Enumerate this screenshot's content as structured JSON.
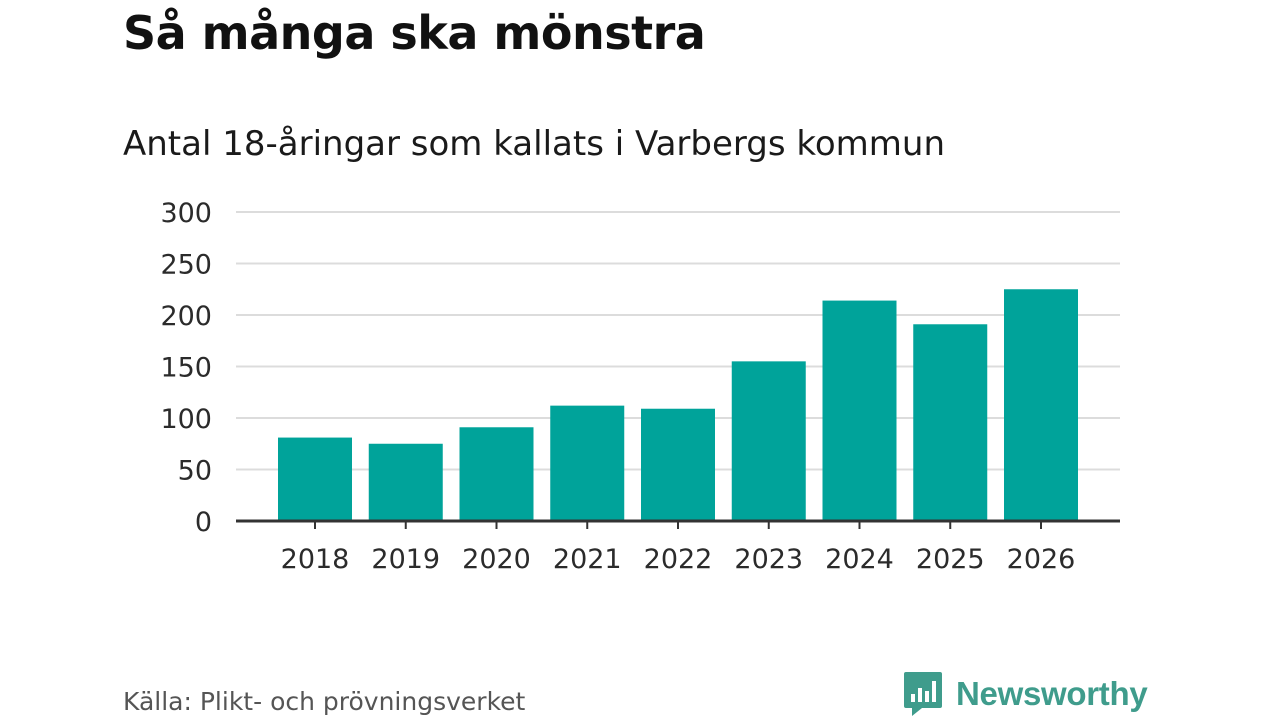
{
  "title": "Så många ska mönstra",
  "source": "Källa: Plikt- och prövningsverket",
  "brand": {
    "name": "Newsworthy",
    "icon": "newsworthy-logo-icon",
    "color": "#3f9c8c"
  },
  "chart_data": {
    "type": "bar",
    "title": "Så många ska mönstra",
    "subtitle": "Antal 18-åringar som kallats i Varbergs kommun",
    "categories": [
      "2018",
      "2019",
      "2020",
      "2021",
      "2022",
      "2023",
      "2024",
      "2025",
      "2026"
    ],
    "values": [
      81,
      75,
      91,
      112,
      109,
      155,
      214,
      191,
      225
    ],
    "ylim": [
      0,
      300
    ],
    "yticks": [
      0,
      50,
      100,
      150,
      200,
      250,
      300
    ],
    "grid": true,
    "bar_color": "#00a39a"
  }
}
